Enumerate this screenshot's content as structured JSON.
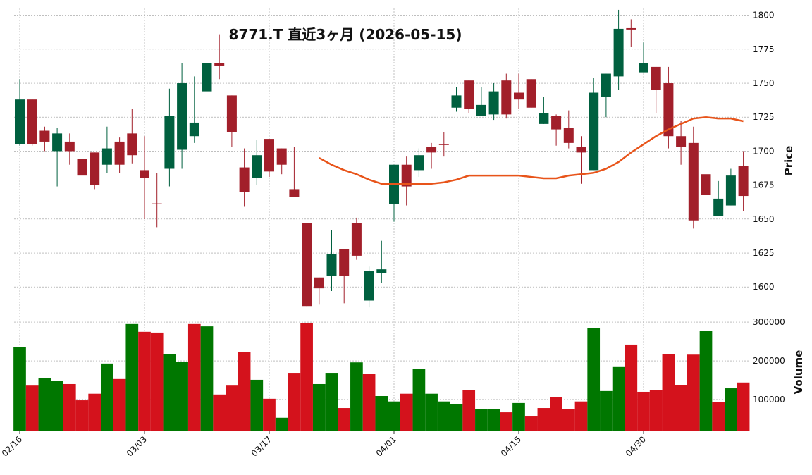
{
  "chart_data": {
    "type": "candlestick",
    "title": "8771.T  直近3ヶ月 (2026-05-15)",
    "categories": [
      "02/16",
      null,
      null,
      null,
      null,
      null,
      null,
      null,
      null,
      null,
      "03/03",
      null,
      null,
      null,
      null,
      null,
      null,
      null,
      null,
      null,
      "03/17",
      null,
      null,
      null,
      null,
      null,
      null,
      null,
      null,
      null,
      "04/01",
      null,
      null,
      null,
      null,
      null,
      null,
      null,
      null,
      null,
      "04/15",
      null,
      null,
      null,
      null,
      null,
      null,
      null,
      null,
      null,
      "04/30",
      null,
      null,
      null,
      null,
      null,
      null,
      null,
      null
    ],
    "open": [
      1705,
      1738,
      1715,
      1700,
      1707,
      1694,
      1699,
      1690,
      1707,
      1713,
      1686,
      1661.5,
      1687,
      1701,
      1711,
      1744,
      1765,
      1741,
      1688,
      1680,
      1709,
      1702,
      1672,
      1647,
      1607,
      1608,
      1628,
      1647,
      1590,
      1610,
      1661,
      1690,
      1686,
      1703,
      1705,
      1732,
      1752,
      1726,
      1727,
      1752,
      1743,
      1753,
      1720,
      1726,
      1717,
      1703,
      1686,
      1740,
      1755,
      1790.5,
      1758,
      1762,
      1750,
      1711,
      1706,
      1683,
      1652,
      1660,
      1689
    ],
    "high": [
      1753,
      1738,
      1718,
      1717,
      1713,
      1704,
      1699,
      1718,
      1710,
      1731,
      1711,
      1684,
      1746,
      1765,
      1755,
      1777,
      1786,
      1741,
      1702,
      1708,
      1709,
      1702,
      1703,
      1647,
      1607,
      1642,
      1628,
      1651,
      1615,
      1634,
      1690,
      1696,
      1702,
      1706,
      1714,
      1747,
      1752,
      1747,
      1750,
      1757,
      1757,
      1753,
      1740,
      1727,
      1730,
      1711,
      1754,
      1757,
      1804,
      1797,
      1780,
      1762,
      1762,
      1722,
      1718,
      1701,
      1678,
      1687,
      1700
    ],
    "low": [
      1704,
      1704,
      1700,
      1674,
      1690,
      1670,
      1672,
      1684,
      1684,
      1691,
      1650,
      1644,
      1674,
      1687,
      1706,
      1729,
      1753,
      1703,
      1659,
      1675,
      1681,
      1683,
      1666,
      1586,
      1587,
      1597,
      1588,
      1620,
      1585,
      1603,
      1648,
      1660,
      1681,
      1687,
      1696,
      1729,
      1728,
      1726,
      1723,
      1724,
      1731,
      1732,
      1720,
      1704,
      1702,
      1676,
      1686,
      1725,
      1745,
      1777,
      1758,
      1728,
      1702,
      1690,
      1643,
      1643,
      1652,
      1660,
      1656
    ],
    "close": [
      1738,
      1705,
      1707,
      1713,
      1700,
      1682,
      1675,
      1702,
      1690,
      1697,
      1680,
      1661,
      1726,
      1750,
      1721,
      1765,
      1763,
      1714,
      1670,
      1697,
      1685,
      1690,
      1666,
      1586,
      1599,
      1624,
      1608,
      1623,
      1612,
      1613,
      1690,
      1674,
      1697,
      1699,
      1704.5,
      1741,
      1731,
      1734,
      1744,
      1727,
      1738,
      1732,
      1728,
      1716,
      1706,
      1699,
      1743,
      1757,
      1790,
      1789.5,
      1765,
      1745,
      1711,
      1703,
      1649,
      1668,
      1665,
      1682,
      1667
    ],
    "up_color": "#00603f",
    "down_color": "#a21f2a",
    "ma": {
      "color": "#e8541a",
      "values": [
        null,
        null,
        null,
        null,
        null,
        null,
        null,
        null,
        null,
        null,
        null,
        null,
        null,
        null,
        null,
        null,
        null,
        null,
        null,
        null,
        null,
        null,
        null,
        null,
        1695,
        1690,
        1686,
        1683,
        1679,
        1676,
        1676,
        1676,
        1676,
        1676,
        1677,
        1679,
        1682,
        1682,
        1682,
        1682,
        1682,
        1681,
        1680,
        1680,
        1682,
        1683,
        1684,
        1687,
        1692,
        1699,
        1705,
        1711,
        1716,
        1720,
        1724,
        1725,
        1724,
        1724,
        1722
      ]
    },
    "ylabel": "Price",
    "ylim": [
      1583,
      1805
    ],
    "yticks": [
      1600,
      1625,
      1650,
      1675,
      1700,
      1725,
      1750,
      1775,
      1800
    ],
    "grid": true,
    "volume": {
      "ylabel": "Volume",
      "up_color": "#007700",
      "down_color": "#d4121c",
      "ylim": [
        18000,
        322000
      ],
      "yticks": [
        100000,
        200000,
        300000
      ],
      "values": [
        235000,
        136000,
        155000,
        149000,
        140000,
        98000,
        115000,
        193000,
        153000,
        295000,
        275000,
        273000,
        218000,
        198000,
        295000,
        289000,
        113000,
        136000,
        222000,
        151000,
        102000,
        53000,
        169000,
        298000,
        140000,
        169000,
        78000,
        196000,
        167000,
        109000,
        95000,
        115000,
        180000,
        115000,
        95000,
        89000,
        125000,
        76000,
        75000,
        67000,
        91000,
        58000,
        78000,
        107000,
        75000,
        95000,
        284000,
        122000,
        184000,
        242000,
        120000,
        124000,
        218000,
        138000,
        216000,
        278000,
        93000,
        129000,
        144000
      ]
    }
  }
}
